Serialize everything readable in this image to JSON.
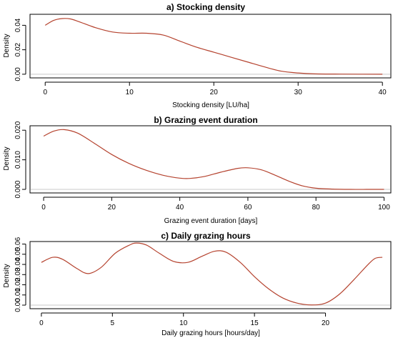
{
  "colors": {
    "curve": "#b5432f",
    "baseline": "#c9c9c9",
    "axis": "#000000"
  },
  "chart_data": [
    {
      "type": "line",
      "title": "a) Stocking density",
      "xlabel": "Stocking density [LU/ha]",
      "ylabel": "Density",
      "xlim": [
        -1.8,
        41
      ],
      "ylim": [
        -0.003,
        0.049
      ],
      "xticks": [
        0,
        10,
        20,
        30,
        40
      ],
      "xtick_labels": [
        "0",
        "10",
        "20",
        "30",
        "40"
      ],
      "yticks": [
        0,
        0.02,
        0.04
      ],
      "ytick_labels": [
        "0.00",
        "0.02",
        "0.04"
      ],
      "series": [
        {
          "x": [
            0,
            1,
            2,
            3,
            4,
            6,
            8,
            10,
            12,
            14,
            16,
            18,
            20,
            22,
            24,
            26,
            28,
            30,
            32,
            35,
            40
          ],
          "y": [
            0.04,
            0.044,
            0.0455,
            0.0452,
            0.043,
            0.038,
            0.0345,
            0.0335,
            0.0335,
            0.032,
            0.027,
            0.022,
            0.018,
            0.014,
            0.01,
            0.006,
            0.0025,
            0.001,
            0.0003,
            0.0001,
            0.0
          ]
        }
      ]
    },
    {
      "type": "line",
      "title": "b) Grazing event duration",
      "xlabel": "Grazing event duration [days]",
      "ylabel": "Density",
      "xlim": [
        -4,
        102
      ],
      "ylim": [
        -0.0012,
        0.0215
      ],
      "xticks": [
        0,
        20,
        40,
        60,
        80,
        100
      ],
      "xtick_labels": [
        "0",
        "20",
        "40",
        "60",
        "80",
        "100"
      ],
      "yticks": [
        0,
        0.01,
        0.02
      ],
      "ytick_labels": [
        "0.000",
        "0.010",
        "0.020"
      ],
      "series": [
        {
          "x": [
            0,
            3,
            6,
            10,
            15,
            20,
            25,
            30,
            35,
            40,
            43,
            47,
            52,
            57,
            60,
            64,
            68,
            72,
            76,
            80,
            85,
            90,
            95,
            100
          ],
          "y": [
            0.018,
            0.0197,
            0.0202,
            0.019,
            0.0155,
            0.0118,
            0.0088,
            0.0065,
            0.0048,
            0.0038,
            0.0037,
            0.0043,
            0.0058,
            0.0071,
            0.0073,
            0.0066,
            0.0048,
            0.0028,
            0.0012,
            0.0004,
            0.0001,
            0.0,
            0.0,
            0.0
          ]
        }
      ]
    },
    {
      "type": "line",
      "title": "c) Daily grazing hours",
      "xlabel": "Daily grazing hours [hours/day]",
      "ylabel": "Density",
      "xlim": [
        -0.8,
        24.6
      ],
      "ylim": [
        -0.0035,
        0.0625
      ],
      "xticks": [
        0,
        5,
        10,
        15,
        20
      ],
      "xtick_labels": [
        "0",
        "5",
        "10",
        "15",
        "20"
      ],
      "yticks": [
        0,
        0.01,
        0.02,
        0.03,
        0.04,
        0.05,
        0.06
      ],
      "ytick_labels": [
        "0.00",
        "0.01",
        "0.02",
        "0.03",
        "0.04",
        "0.05",
        "0.06"
      ],
      "series": [
        {
          "x": [
            0,
            0.8,
            1.5,
            2.5,
            3.3,
            4.2,
            5.2,
            6.2,
            6.7,
            7.4,
            8.3,
            9.3,
            10.3,
            11.3,
            12.2,
            13.0,
            14.0,
            15.0,
            16.0,
            17.0,
            18.0,
            19.0,
            20.0,
            21.0,
            22.0,
            23.0,
            23.5,
            24.0
          ],
          "y": [
            0.042,
            0.047,
            0.045,
            0.036,
            0.031,
            0.037,
            0.051,
            0.059,
            0.061,
            0.059,
            0.051,
            0.043,
            0.042,
            0.048,
            0.053,
            0.052,
            0.042,
            0.028,
            0.016,
            0.007,
            0.002,
            0.0002,
            0.002,
            0.011,
            0.025,
            0.04,
            0.046,
            0.047
          ]
        }
      ]
    }
  ]
}
